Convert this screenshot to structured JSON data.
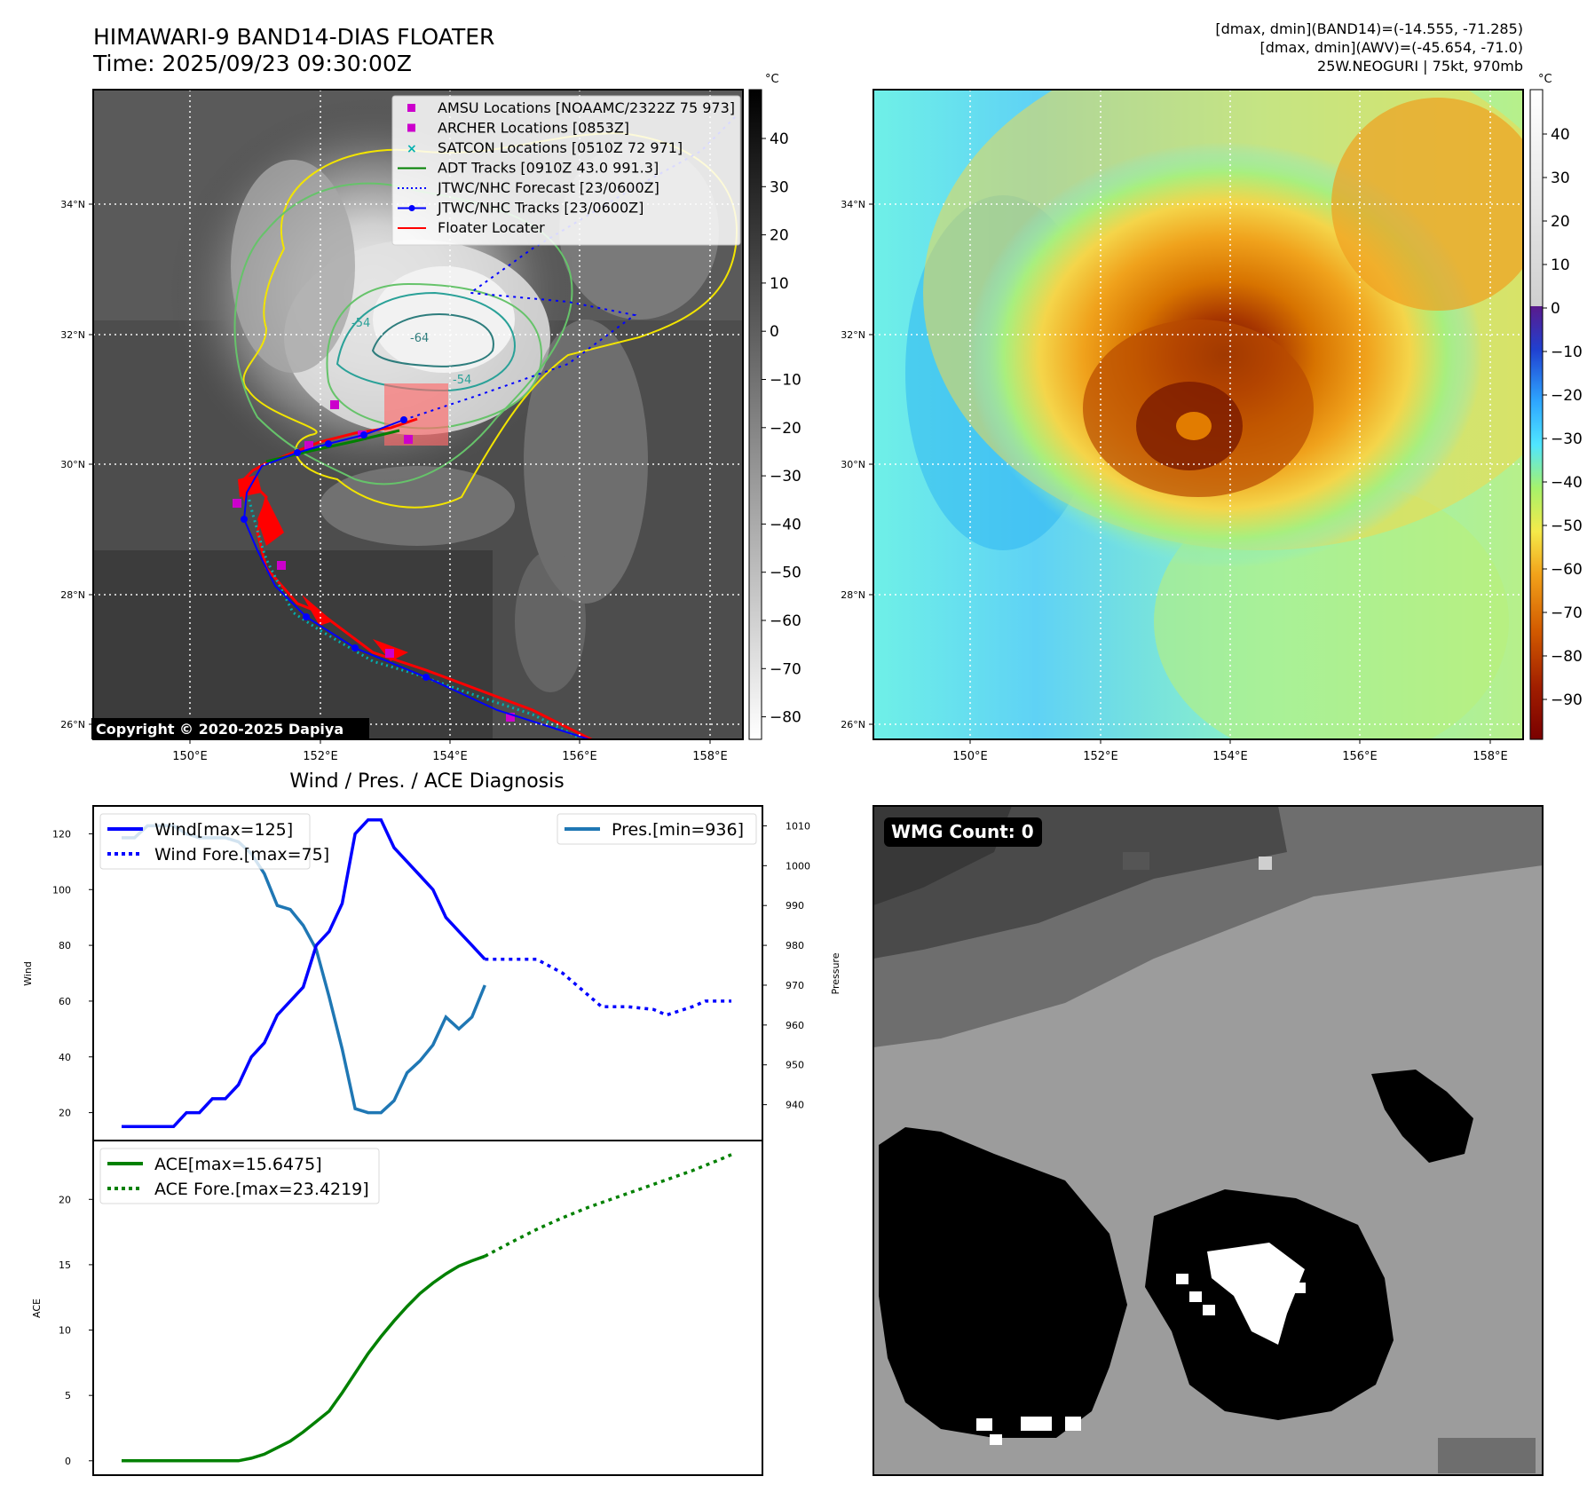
{
  "header": {
    "title_line1": "HIMAWARI-9 BAND14-DIAS FLOATER",
    "title_line2": "Time: 2025/09/23 09:30:00Z",
    "info_line1": "[dmax, dmin](BAND14)=(-14.555, -71.285)",
    "info_line2": "[dmax, dmin](AWV)=(-45.654, -71.0)",
    "info_line3": "25W.NEOGURI | 75kt, 970mb"
  },
  "map_axes": {
    "lon_ticks": [
      "150°E",
      "152°E",
      "154°E",
      "156°E",
      "158°E"
    ],
    "lat_ticks": [
      "34°N",
      "32°N",
      "30°N",
      "28°N",
      "26°N"
    ],
    "copyright": "Copyright © 2020-2025 Dapiya",
    "contour_labels": [
      "-54",
      "-64",
      "-54"
    ]
  },
  "left_colorbar": {
    "unit": "°C",
    "ticks": [
      "40",
      "30",
      "20",
      "10",
      "0",
      "−10",
      "−20",
      "−30",
      "−40",
      "−50",
      "−60",
      "−70",
      "−80"
    ]
  },
  "right_colorbar": {
    "unit": "°C",
    "ticks": [
      "40",
      "30",
      "20",
      "10",
      "0",
      "−10",
      "−20",
      "−30",
      "−40",
      "−50",
      "−60",
      "−70",
      "−80",
      "−90"
    ]
  },
  "legend_map": [
    {
      "label": "AMSU Locations [NOAAMC/2322Z 75 973]",
      "color": "#cc00cc",
      "kind": "square"
    },
    {
      "label": "ARCHER Locations [0853Z]",
      "color": "#cc00cc",
      "kind": "square"
    },
    {
      "label": "SATCON Locations [0510Z 72 971]",
      "color": "#00b0b0",
      "kind": "x"
    },
    {
      "label": "ADT Tracks [0910Z 43.0 991.3]",
      "color": "#008000",
      "kind": "line"
    },
    {
      "label": "JTWC/NHC Forecast [23/0600Z]",
      "color": "#0000ff",
      "kind": "dotted"
    },
    {
      "label": "JTWC/NHC Tracks [23/0600Z]",
      "color": "#0000ff",
      "kind": "dotline"
    },
    {
      "label": "Floater Locater",
      "color": "#ff0000",
      "kind": "line"
    }
  ],
  "diagnosis": {
    "title": "Wind / Pres. / ACE Diagnosis",
    "wind_ylabel": "Wind",
    "pres_ylabel": "Pressure",
    "ace_ylabel": "ACE",
    "wind_legend": "Wind[max=125]",
    "wind_fore_legend": "Wind Fore.[max=75]",
    "pres_legend": "Pres.[min=936]",
    "ace_legend": "ACE[max=15.6475]",
    "ace_fore_legend": "ACE Fore.[max=23.4219]"
  },
  "wmg": {
    "label": "WMG Count: 0"
  },
  "chart_data": [
    {
      "type": "line",
      "name": "wind",
      "x": [
        0,
        1,
        2,
        3,
        4,
        5,
        6,
        7,
        8,
        9,
        10,
        11,
        12,
        13,
        14,
        15,
        16,
        17,
        18,
        19,
        20,
        21,
        22,
        23,
        24,
        25,
        26,
        27,
        28
      ],
      "values": [
        15,
        15,
        15,
        15,
        15,
        20,
        20,
        25,
        25,
        30,
        40,
        45,
        55,
        60,
        65,
        80,
        85,
        95,
        120,
        125,
        125,
        115,
        110,
        105,
        100,
        90,
        85,
        80,
        75
      ],
      "ylim": [
        10,
        130
      ],
      "yticks": [
        20,
        40,
        60,
        80,
        100,
        120
      ]
    },
    {
      "type": "line",
      "name": "wind_forecast",
      "x": [
        28,
        30,
        32,
        34,
        36,
        37,
        39,
        41,
        42,
        44,
        45,
        47
      ],
      "values": [
        75,
        75,
        75,
        70,
        62,
        58,
        58,
        57,
        55,
        58,
        60,
        60
      ],
      "ylim": [
        10,
        130
      ]
    },
    {
      "type": "line",
      "name": "pressure",
      "x": [
        0,
        1,
        2,
        3,
        4,
        5,
        6,
        7,
        8,
        9,
        10,
        11,
        12,
        13,
        14,
        15,
        16,
        17,
        18,
        19,
        20,
        21,
        22,
        23,
        24,
        25,
        26,
        27,
        28
      ],
      "values": [
        1007,
        1007,
        1010,
        1010,
        1010,
        1008,
        1007,
        1007,
        1007,
        1006,
        1003,
        998,
        990,
        989,
        985,
        979,
        967,
        954,
        939,
        938,
        938,
        941,
        948,
        951,
        955,
        962,
        959,
        962,
        970
      ],
      "ylim": [
        931,
        1015
      ],
      "yticks": [
        940,
        950,
        960,
        970,
        980,
        990,
        1000,
        1010
      ]
    },
    {
      "type": "line",
      "name": "ace",
      "x": [
        0,
        1,
        2,
        3,
        4,
        5,
        6,
        7,
        8,
        9,
        10,
        11,
        12,
        13,
        14,
        15,
        16,
        17,
        18,
        19,
        20,
        21,
        22,
        23,
        24,
        25,
        26,
        27,
        28
      ],
      "values": [
        0,
        0,
        0,
        0,
        0,
        0,
        0,
        0,
        0,
        0,
        0.2,
        0.5,
        1.0,
        1.5,
        2.2,
        3.0,
        3.8,
        5.2,
        6.7,
        8.2,
        9.5,
        10.7,
        11.8,
        12.8,
        13.6,
        14.3,
        14.9,
        15.3,
        15.65
      ],
      "ylim": [
        -1.1,
        24.5
      ],
      "yticks": [
        0,
        5,
        10,
        15,
        20
      ]
    },
    {
      "type": "line",
      "name": "ace_forecast",
      "x": [
        28,
        30,
        32,
        34,
        36,
        38,
        40,
        42,
        44,
        46,
        47
      ],
      "values": [
        15.65,
        16.7,
        17.7,
        18.6,
        19.4,
        20.1,
        20.8,
        21.5,
        22.2,
        23.0,
        23.42
      ],
      "ylim": [
        -1.1,
        24.5
      ]
    }
  ],
  "colors": {
    "wind": "#0000ff",
    "pressure": "#1f77b4",
    "ace": "#008000"
  }
}
